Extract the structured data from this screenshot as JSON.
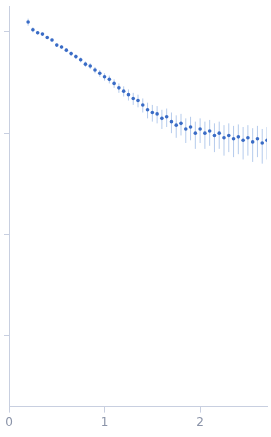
{
  "chart_data": {
    "type": "scatter",
    "color": "#3a6cc6",
    "marker": "circle",
    "log": "y",
    "grid": false,
    "tick_labels": "x",
    "x": [
      0.2,
      0.25,
      0.3,
      0.35,
      0.4,
      0.45,
      0.5,
      0.55,
      0.6,
      0.65,
      0.7,
      0.75,
      0.8,
      0.85,
      0.9,
      0.95,
      1.0,
      1.05,
      1.1,
      1.15,
      1.2,
      1.25,
      1.3,
      1.35,
      1.4,
      1.45,
      1.5,
      1.55,
      1.6,
      1.65,
      1.7,
      1.75,
      1.8,
      1.85,
      1.9,
      1.95,
      2.0,
      2.05,
      2.1,
      2.15,
      2.2,
      2.25,
      2.3,
      2.35,
      2.4,
      2.45,
      2.5,
      2.55,
      2.6,
      2.65,
      2.7
    ],
    "values": [
      1.25,
      1.05,
      0.98,
      0.95,
      0.88,
      0.83,
      0.74,
      0.71,
      0.66,
      0.61,
      0.57,
      0.53,
      0.48,
      0.46,
      0.42,
      0.39,
      0.36,
      0.34,
      0.31,
      0.28,
      0.26,
      0.24,
      0.22,
      0.21,
      0.19,
      0.17,
      0.16,
      0.155,
      0.14,
      0.145,
      0.13,
      0.12,
      0.125,
      0.11,
      0.115,
      0.1,
      0.11,
      0.1,
      0.105,
      0.095,
      0.1,
      0.09,
      0.095,
      0.088,
      0.092,
      0.085,
      0.09,
      0.082,
      0.088,
      0.08,
      0.085
    ],
    "errors": [
      0.1,
      0.06,
      0.04,
      0.03,
      0.03,
      0.03,
      0.03,
      0.03,
      0.03,
      0.03,
      0.03,
      0.03,
      0.03,
      0.03,
      0.03,
      0.03,
      0.03,
      0.03,
      0.03,
      0.03,
      0.03,
      0.03,
      0.03,
      0.03,
      0.03,
      0.03,
      0.03,
      0.03,
      0.03,
      0.03,
      0.03,
      0.03,
      0.03,
      0.03,
      0.03,
      0.03,
      0.03,
      0.03,
      0.03,
      0.03,
      0.03,
      0.03,
      0.03,
      0.03,
      0.03,
      0.03,
      0.03,
      0.03,
      0.03,
      0.03,
      0.03
    ],
    "xlim": [
      0,
      2.7
    ],
    "xticks": [
      0,
      1,
      2
    ],
    "ylim": [
      0.0002,
      1.8
    ],
    "yticks": [
      0.001,
      0.01,
      0.1,
      1
    ]
  }
}
